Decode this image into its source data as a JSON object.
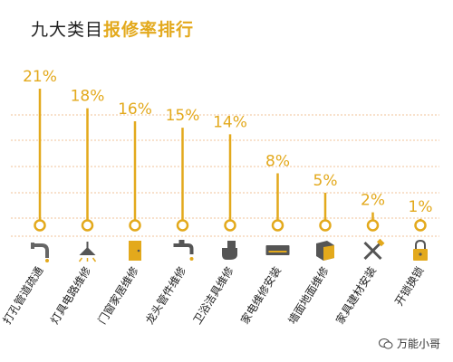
{
  "title": {
    "prefix": "九大类目",
    "highlight": "报修率排行"
  },
  "watermark": "万能小哥",
  "colors": {
    "accent": "#e3a91c",
    "grid": "#f0c39a",
    "text": "#1e1e1e"
  },
  "chart_data": {
    "type": "bar",
    "title": "九大类目报修率排行",
    "categories": [
      "打孔管道疏通",
      "灯具电路维修",
      "门窗家居维修",
      "龙头管件维修",
      "卫浴洁具维修",
      "家电维修安装",
      "墙面地面维修",
      "家具建材安装",
      "开锁换锁"
    ],
    "values": [
      21,
      18,
      16,
      15,
      14,
      8,
      5,
      2,
      1
    ],
    "value_labels": [
      "21%",
      "18%",
      "16%",
      "15%",
      "14%",
      "8%",
      "5%",
      "2%",
      "1%"
    ],
    "icons": [
      "pipe-icon",
      "lamp-icon",
      "door-icon",
      "faucet-icon",
      "toilet-icon",
      "air-conditioner-icon",
      "wall-tile-icon",
      "tools-icon",
      "padlock-icon"
    ],
    "ylim": [
      0,
      21
    ],
    "grid": true
  }
}
